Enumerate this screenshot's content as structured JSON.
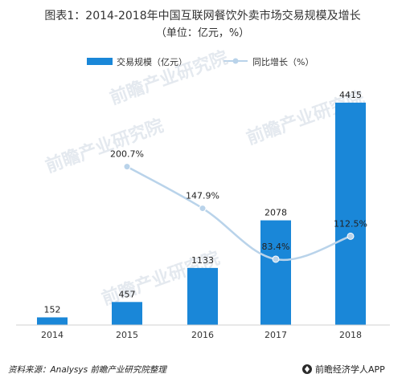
{
  "chart_data": {
    "type": "bar",
    "title": "图表1：2014-2018年中国互联网餐饮外卖市场交易规模及增长",
    "subtitle": "（单位：亿元，%）",
    "categories": [
      "2014",
      "2015",
      "2016",
      "2017",
      "2018"
    ],
    "series": [
      {
        "name": "交易规模（亿元）",
        "type": "bar",
        "values": [
          152,
          457,
          1133,
          2078,
          4415
        ],
        "labels": [
          "152",
          "457",
          "1133",
          "2078",
          "4415"
        ],
        "color": "#1a87d8"
      },
      {
        "name": "同比增长（%）",
        "type": "line",
        "x": [
          "2015",
          "2016",
          "2017",
          "2018"
        ],
        "values": [
          200.7,
          147.9,
          83.4,
          112.5
        ],
        "labels": [
          "200.7%",
          "147.9%",
          "83.4%",
          "112.5%"
        ],
        "color": "#b9d3ea"
      }
    ],
    "ylim_bar": [
      0,
      4700
    ],
    "ylim_line": [
      0,
      300
    ],
    "legend_position": "top-center",
    "grid": false
  },
  "footer": {
    "source": "资料来源：Analysys 前瞻产业研究院整理",
    "brand": "前瞻经济学人APP",
    "brand_icon": "brand-logo-icon"
  },
  "watermark": {
    "text": "前瞻产业研究院"
  }
}
